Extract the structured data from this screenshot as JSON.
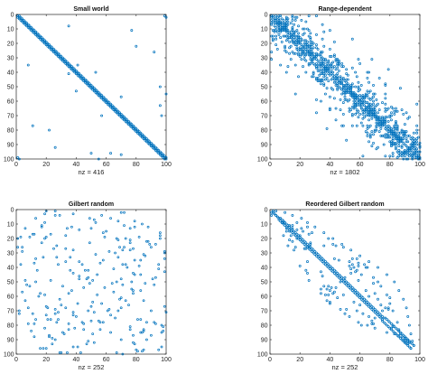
{
  "chart_data": [
    {
      "type": "scatter",
      "title": "Small world",
      "xlabel": "nz = 416",
      "xlim": [
        0,
        100
      ],
      "ylim": [
        0,
        100
      ],
      "y_reversed": true,
      "xticks": [
        0,
        20,
        40,
        60,
        80,
        100
      ],
      "yticks": [
        0,
        10,
        20,
        30,
        40,
        50,
        60,
        70,
        80,
        90,
        100
      ],
      "color": "#0072bd",
      "pattern": "tridiagonal band (i, i-1..i+1) plus symmetric shortcuts",
      "points": [
        [
          1,
          1
        ],
        [
          2,
          100
        ],
        [
          100,
          2
        ],
        [
          99,
          1
        ],
        [
          1,
          99
        ],
        [
          8,
          35
        ],
        [
          35,
          8
        ],
        [
          53,
          40
        ],
        [
          40,
          53
        ],
        [
          80,
          22
        ],
        [
          22,
          80
        ],
        [
          63,
          96
        ],
        [
          96,
          63
        ],
        [
          92,
          26
        ],
        [
          26,
          92
        ],
        [
          97,
          70
        ],
        [
          70,
          97
        ],
        [
          77,
          11
        ],
        [
          11,
          77
        ],
        [
          55,
          100
        ],
        [
          100,
          55
        ],
        [
          50,
          96
        ],
        [
          96,
          50
        ],
        [
          57,
          70
        ],
        [
          70,
          57
        ],
        [
          35,
          41
        ],
        [
          41,
          35
        ]
      ]
    },
    {
      "type": "scatter",
      "title": "Range-dependent",
      "xlabel": "nz = 1802",
      "xlim": [
        0,
        100
      ],
      "ylim": [
        0,
        100
      ],
      "y_reversed": true,
      "xticks": [
        0,
        20,
        40,
        60,
        80,
        100
      ],
      "yticks": [
        0,
        10,
        20,
        30,
        40,
        50,
        60,
        70,
        80,
        90,
        100
      ],
      "color": "#0072bd",
      "pattern": "dense diagonal band, connection probability decaying with |i-j|"
    },
    {
      "type": "scatter",
      "title": "Gilbert random",
      "xlabel": "nz = 252",
      "xlim": [
        0,
        100
      ],
      "ylim": [
        0,
        100
      ],
      "y_reversed": true,
      "xticks": [
        0,
        20,
        40,
        60,
        80,
        100
      ],
      "yticks": [
        0,
        10,
        20,
        30,
        40,
        50,
        60,
        70,
        80,
        90,
        100
      ],
      "color": "#0072bd",
      "pattern": "uniform random symmetric"
    },
    {
      "type": "scatter",
      "title": "Reordered Gilbert random",
      "xlabel": "nz = 252",
      "xlim": [
        0,
        100
      ],
      "ylim": [
        0,
        100
      ],
      "y_reversed": true,
      "xticks": [
        0,
        20,
        40,
        60,
        80,
        100
      ],
      "yticks": [
        0,
        10,
        20,
        30,
        40,
        50,
        60,
        70,
        80,
        90,
        100
      ],
      "color": "#0072bd",
      "pattern": "random graph permuted into a lens-shaped envelope along the diagonal",
      "points_partial": [
        [
          4,
          1
        ],
        [
          1,
          4
        ],
        [
          10,
          2
        ],
        [
          15,
          4
        ],
        [
          21,
          6
        ],
        [
          25,
          9
        ],
        [
          30,
          12
        ],
        [
          36,
          16
        ],
        [
          42,
          20
        ],
        [
          48,
          24
        ],
        [
          54,
          28
        ],
        [
          60,
          32
        ],
        [
          66,
          36
        ],
        [
          72,
          40
        ],
        [
          78,
          45
        ],
        [
          83,
          50
        ],
        [
          86,
          56
        ],
        [
          89,
          62
        ],
        [
          91,
          68
        ],
        [
          92,
          74
        ],
        [
          93,
          80
        ],
        [
          94,
          86
        ],
        [
          95,
          91
        ],
        [
          96,
          94
        ],
        [
          94,
          96
        ],
        [
          93,
          92
        ],
        [
          90,
          88
        ],
        [
          86,
          84
        ],
        [
          82,
          80
        ]
      ]
    }
  ]
}
